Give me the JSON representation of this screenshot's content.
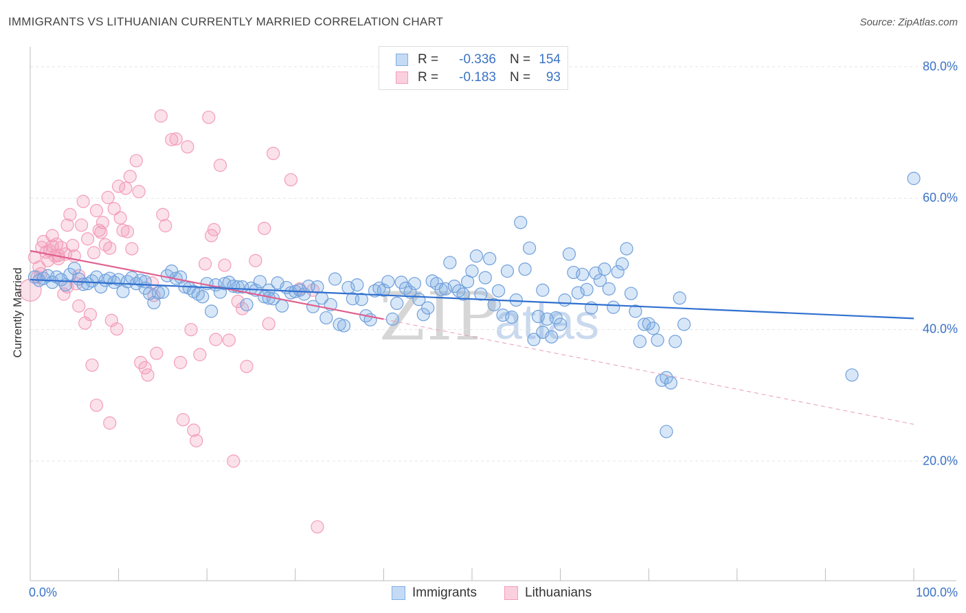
{
  "title": "IMMIGRANTS VS LITHUANIAN CURRENTLY MARRIED CORRELATION CHART",
  "source": "Source: ZipAtlas.com",
  "watermark": {
    "zip": "ZIP",
    "atlas": "atlas"
  },
  "legend": {
    "rows": [
      {
        "r_label": "R =",
        "r_value": "-0.336",
        "n_label": "N =",
        "n_value": "154",
        "color": "#7eaee6"
      },
      {
        "r_label": "R =",
        "r_value": "-0.183",
        "n_label": "N =",
        "n_value": "93",
        "color": "#f39cb8"
      }
    ]
  },
  "bottom_legend": {
    "immigrants": "Immigrants",
    "lithuanians": "Lithuanians"
  },
  "chart_data": {
    "type": "scatter",
    "title": "IMMIGRANTS VS LITHUANIAN CURRENTLY MARRIED CORRELATION CHART",
    "xlabel": "",
    "ylabel": "Currently Married",
    "xlim": [
      0,
      100
    ],
    "ylim": [
      0,
      82
    ],
    "x_ticks": [
      "0.0%",
      "100.0%"
    ],
    "y_ticks": [
      {
        "value": 20,
        "label": "20.0%"
      },
      {
        "value": 40,
        "label": "40.0%"
      },
      {
        "value": 60,
        "label": "60.0%"
      },
      {
        "value": 80,
        "label": "80.0%"
      }
    ],
    "grid": true,
    "series": [
      {
        "name": "Immigrants",
        "color": "#7eaee6",
        "line_color": "#2f6fcf",
        "trend": {
          "x": [
            0,
            100
          ],
          "y": [
            47.6,
            41.7
          ]
        },
        "points": [
          [
            0.5,
            48.0
          ],
          [
            1.0,
            47.5
          ],
          [
            1.5,
            47.8
          ],
          [
            2.0,
            48.2
          ],
          [
            2.5,
            47.2
          ],
          [
            3.0,
            48.0
          ],
          [
            3.5,
            47.6
          ],
          [
            4.0,
            46.8
          ],
          [
            4.5,
            48.4
          ],
          [
            5.0,
            49.3
          ],
          [
            5.5,
            47.7
          ],
          [
            6.0,
            46.9
          ],
          [
            6.5,
            47.0
          ],
          [
            7.0,
            47.4
          ],
          [
            7.5,
            48.0
          ],
          [
            8.0,
            46.5
          ],
          [
            8.5,
            47.5
          ],
          [
            9.0,
            47.8
          ],
          [
            9.5,
            47.2
          ],
          [
            10.0,
            47.6
          ],
          [
            10.5,
            45.8
          ],
          [
            11.0,
            47.3
          ],
          [
            11.5,
            47.9
          ],
          [
            12.0,
            47.0
          ],
          [
            12.5,
            47.5
          ],
          [
            13.0,
            46.3
          ],
          [
            13.5,
            45.5
          ],
          [
            14.0,
            44.1
          ],
          [
            14.5,
            45.6
          ],
          [
            15.0,
            45.7
          ],
          [
            15.5,
            48.2
          ],
          [
            16.0,
            48.9
          ],
          [
            16.5,
            47.8
          ],
          [
            17.0,
            48.0
          ],
          [
            17.5,
            46.5
          ],
          [
            18.0,
            46.3
          ],
          [
            18.5,
            45.8
          ],
          [
            19.0,
            45.4
          ],
          [
            19.5,
            45.0
          ],
          [
            20.0,
            47.0
          ],
          [
            20.5,
            42.8
          ],
          [
            21.0,
            46.8
          ],
          [
            21.5,
            45.7
          ],
          [
            22.0,
            47.0
          ],
          [
            22.5,
            47.2
          ],
          [
            23.0,
            46.6
          ],
          [
            23.5,
            46.5
          ],
          [
            24.0,
            46.5
          ],
          [
            24.5,
            43.8
          ],
          [
            25.0,
            46.3
          ],
          [
            25.5,
            46.0
          ],
          [
            26.0,
            47.3
          ],
          [
            26.5,
            45.0
          ],
          [
            27.0,
            46.0
          ],
          [
            27.5,
            44.7
          ],
          [
            28.0,
            47.1
          ],
          [
            28.5,
            43.6
          ],
          [
            29.0,
            46.4
          ],
          [
            29.5,
            45.6
          ],
          [
            30.0,
            45.8
          ],
          [
            30.5,
            46.0
          ],
          [
            31.0,
            45.4
          ],
          [
            31.5,
            46.6
          ],
          [
            32.0,
            43.5
          ],
          [
            32.5,
            46.5
          ],
          [
            33.0,
            44.8
          ],
          [
            33.5,
            41.8
          ],
          [
            34.0,
            43.8
          ],
          [
            34.5,
            47.7
          ],
          [
            35.0,
            40.8
          ],
          [
            35.5,
            40.6
          ],
          [
            36.0,
            46.4
          ],
          [
            36.5,
            44.7
          ],
          [
            37.0,
            46.8
          ],
          [
            37.5,
            44.6
          ],
          [
            38.0,
            42.1
          ],
          [
            38.5,
            41.5
          ],
          [
            39.0,
            45.9
          ],
          [
            39.5,
            46.3
          ],
          [
            40.0,
            46.0
          ],
          [
            40.5,
            47.3
          ],
          [
            41.0,
            41.6
          ],
          [
            41.5,
            44.0
          ],
          [
            42.0,
            47.2
          ],
          [
            42.5,
            46.3
          ],
          [
            43.0,
            45.7
          ],
          [
            43.5,
            47.0
          ],
          [
            44.0,
            44.6
          ],
          [
            44.5,
            42.3
          ],
          [
            45.0,
            43.3
          ],
          [
            45.5,
            47.4
          ],
          [
            46.0,
            47.0
          ],
          [
            46.5,
            46.1
          ],
          [
            47.0,
            46.2
          ],
          [
            47.5,
            50.2
          ],
          [
            48.0,
            46.6
          ],
          [
            48.5,
            45.9
          ],
          [
            49.0,
            45.4
          ],
          [
            49.5,
            47.3
          ],
          [
            50.0,
            48.9
          ],
          [
            50.5,
            51.2
          ],
          [
            51.0,
            45.4
          ],
          [
            51.5,
            47.9
          ],
          [
            52.0,
            50.8
          ],
          [
            52.5,
            43.8
          ],
          [
            53.0,
            45.9
          ],
          [
            53.5,
            42.2
          ],
          [
            54.0,
            48.9
          ],
          [
            54.5,
            41.9
          ],
          [
            55.0,
            44.5
          ],
          [
            55.5,
            56.3
          ],
          [
            56.0,
            49.2
          ],
          [
            56.5,
            52.4
          ],
          [
            57.0,
            38.5
          ],
          [
            57.5,
            42.0
          ],
          [
            58.0,
            39.6
          ],
          [
            58.5,
            41.6
          ],
          [
            59.0,
            38.9
          ],
          [
            59.5,
            41.8
          ],
          [
            60.0,
            40.8
          ],
          [
            60.5,
            44.5
          ],
          [
            61.0,
            51.5
          ],
          [
            61.5,
            48.7
          ],
          [
            62.0,
            45.6
          ],
          [
            62.5,
            48.4
          ],
          [
            63.0,
            46.1
          ],
          [
            63.5,
            43.3
          ],
          [
            64.0,
            48.6
          ],
          [
            64.5,
            47.5
          ],
          [
            65.0,
            49.2
          ],
          [
            65.5,
            46.2
          ],
          [
            66.0,
            43.4
          ],
          [
            66.5,
            48.8
          ],
          [
            67.0,
            50.0
          ],
          [
            67.5,
            52.3
          ],
          [
            68.0,
            45.5
          ],
          [
            68.5,
            42.8
          ],
          [
            69.0,
            38.2
          ],
          [
            69.5,
            40.8
          ],
          [
            70.0,
            40.9
          ],
          [
            70.5,
            40.2
          ],
          [
            71.0,
            38.4
          ],
          [
            71.5,
            32.3
          ],
          [
            72.0,
            32.7
          ],
          [
            72.5,
            31.9
          ],
          [
            73.0,
            38.2
          ],
          [
            73.5,
            44.8
          ],
          [
            74.0,
            40.8
          ],
          [
            72.0,
            24.5
          ],
          [
            93.0,
            33.1
          ],
          [
            100.0,
            63.0
          ],
          [
            58.0,
            46.0
          ],
          [
            27.0,
            44.8
          ],
          [
            13.0,
            47.3
          ]
        ]
      },
      {
        "name": "Lithuanians",
        "color": "#f39cb8",
        "line_color": "#e0608f",
        "trend": {
          "x": [
            0,
            40
          ],
          "y": [
            52.0,
            41.6
          ]
        },
        "trend_extended": {
          "x": [
            40,
            100
          ],
          "y": [
            41.6,
            25.6
          ]
        },
        "points": [
          [
            0.0,
            46.0
          ],
          [
            0.5,
            51.0
          ],
          [
            0.8,
            48.0
          ],
          [
            1.0,
            49.5
          ],
          [
            1.3,
            52.5
          ],
          [
            1.5,
            53.4
          ],
          [
            1.8,
            51.8
          ],
          [
            2.0,
            50.5
          ],
          [
            2.2,
            52.0
          ],
          [
            2.5,
            54.3
          ],
          [
            2.8,
            51.2
          ],
          [
            3.0,
            53.0
          ],
          [
            3.2,
            50.8
          ],
          [
            3.5,
            52.5
          ],
          [
            3.8,
            45.4
          ],
          [
            4.0,
            51.5
          ],
          [
            4.2,
            55.9
          ],
          [
            4.5,
            57.5
          ],
          [
            4.8,
            52.8
          ],
          [
            5.0,
            51.2
          ],
          [
            5.2,
            47.0
          ],
          [
            5.5,
            48.2
          ],
          [
            5.8,
            55.9
          ],
          [
            6.0,
            59.5
          ],
          [
            6.2,
            41.0
          ],
          [
            6.5,
            53.8
          ],
          [
            6.8,
            42.3
          ],
          [
            7.0,
            34.6
          ],
          [
            7.2,
            51.7
          ],
          [
            7.5,
            58.1
          ],
          [
            7.8,
            55.1
          ],
          [
            8.0,
            54.8
          ],
          [
            8.2,
            56.3
          ],
          [
            8.5,
            52.9
          ],
          [
            8.8,
            60.1
          ],
          [
            9.0,
            52.4
          ],
          [
            9.2,
            41.4
          ],
          [
            9.5,
            58.4
          ],
          [
            9.8,
            40.1
          ],
          [
            10.0,
            61.8
          ],
          [
            10.2,
            57.0
          ],
          [
            10.5,
            55.1
          ],
          [
            10.8,
            61.5
          ],
          [
            11.0,
            54.9
          ],
          [
            11.3,
            63.3
          ],
          [
            11.5,
            52.3
          ],
          [
            12.0,
            65.7
          ],
          [
            12.3,
            61.0
          ],
          [
            12.5,
            35.0
          ],
          [
            13.0,
            34.2
          ],
          [
            13.3,
            33.1
          ],
          [
            13.8,
            47.1
          ],
          [
            14.0,
            45.2
          ],
          [
            14.3,
            36.4
          ],
          [
            14.8,
            72.5
          ],
          [
            15.0,
            57.5
          ],
          [
            15.3,
            55.8
          ],
          [
            16.0,
            68.9
          ],
          [
            16.5,
            69.0
          ],
          [
            17.0,
            35.0
          ],
          [
            17.3,
            26.3
          ],
          [
            17.8,
            67.8
          ],
          [
            18.2,
            40.0
          ],
          [
            18.5,
            24.7
          ],
          [
            18.8,
            23.1
          ],
          [
            19.2,
            36.2
          ],
          [
            19.8,
            50.0
          ],
          [
            20.2,
            72.3
          ],
          [
            20.5,
            54.3
          ],
          [
            20.8,
            55.2
          ],
          [
            21.0,
            38.5
          ],
          [
            21.5,
            65.0
          ],
          [
            22.0,
            49.8
          ],
          [
            22.5,
            38.4
          ],
          [
            23.0,
            20.0
          ],
          [
            23.5,
            44.3
          ],
          [
            24.0,
            43.2
          ],
          [
            24.5,
            34.4
          ],
          [
            25.5,
            50.5
          ],
          [
            26.5,
            55.4
          ],
          [
            27.0,
            40.9
          ],
          [
            27.5,
            66.8
          ],
          [
            29.5,
            62.8
          ],
          [
            30.5,
            46.2
          ],
          [
            32.0,
            46.0
          ],
          [
            32.5,
            10.0
          ],
          [
            9.0,
            25.8
          ],
          [
            7.5,
            28.5
          ],
          [
            4.2,
            46.5
          ],
          [
            3.2,
            51.3
          ],
          [
            1.2,
            48.5
          ],
          [
            2.5,
            52.7
          ],
          [
            5.5,
            43.6
          ]
        ]
      }
    ]
  }
}
